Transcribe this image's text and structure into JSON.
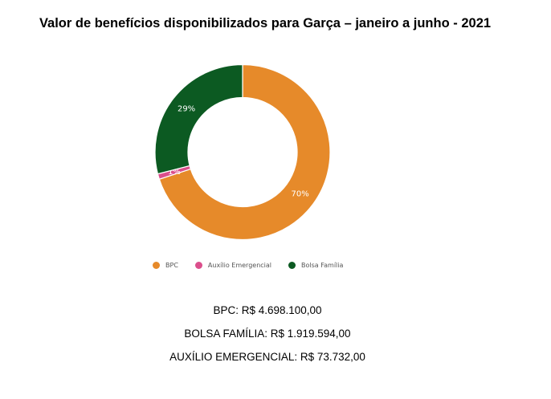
{
  "title": "Valor de benefícios disponibilizados para Garça – janeiro a junho - 2021",
  "chart_data": {
    "type": "pie",
    "donut": true,
    "title": "Valor de benefícios disponibilizados para Garça – janeiro a junho - 2021",
    "legend_position": "bottom",
    "slices": [
      {
        "name": "BPC",
        "label": "70%",
        "value": 70,
        "color": "#e68a2a"
      },
      {
        "name": "Auxílio Emergencial",
        "label": "1%",
        "value": 1,
        "color": "#db4f8c"
      },
      {
        "name": "Bolsa Família",
        "label": "29%",
        "value": 29,
        "color": "#0c5a22"
      }
    ]
  },
  "legend": {
    "bpc": "BPC",
    "auxilio": "Auxílio Emergencial",
    "bolsa": "Bolsa Família"
  },
  "colors": {
    "bpc": "#e68a2a",
    "auxilio": "#db4f8c",
    "bolsa": "#0c5a22"
  },
  "values": {
    "bpc": "BPC: R$ 4.698.100,00",
    "bolsa": "BOLSA FAMÍLIA: R$ 1.919.594,00",
    "auxilio": "AUXÍLIO EMERGENCIAL: R$ 73.732,00"
  }
}
